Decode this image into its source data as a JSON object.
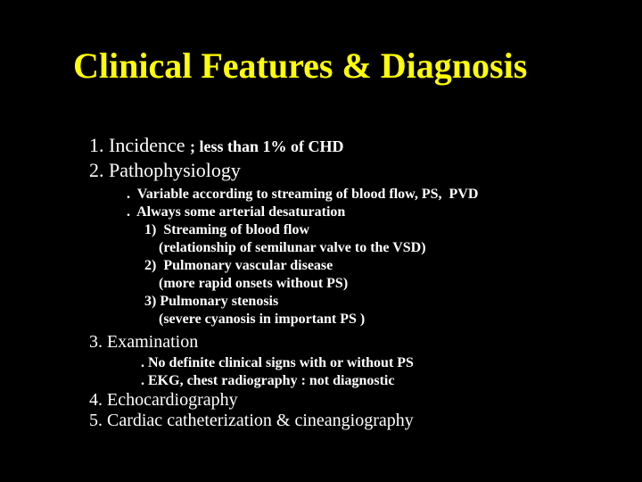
{
  "title": "Clinical Features & Diagnosis",
  "item1_label": "1. Incidence ",
  "item1_sub": "; less than 1% of CHD",
  "item2": "2. Pathophysiology",
  "patho_lines": [
    ".  Variable according to streaming of blood flow, PS,  PVD",
    ".  Always some arterial desaturation",
    "     1)  Streaming of blood flow",
    "         (relationship of semilunar valve to the VSD)",
    "     2)  Pulmonary vascular disease",
    "         (more rapid onsets without PS)",
    "     3) Pulmonary stenosis",
    "         (severe cyanosis in important PS )"
  ],
  "item3": "3.   Examination",
  "exam_lines": [
    ".  No definite clinical signs with or without PS",
    ".  EKG, chest radiography     :  not diagnostic"
  ],
  "item4": "4.   Echocardiography",
  "item5": "5.   Cardiac catheterization & cineangiography",
  "colors": {
    "background": "#000000",
    "title": "#ffff00",
    "body_text": "#ffffff"
  },
  "fonts": {
    "family": "Times New Roman",
    "title_size_pt": 30,
    "section_size_pt": 16,
    "sub_size_pt": 12
  }
}
